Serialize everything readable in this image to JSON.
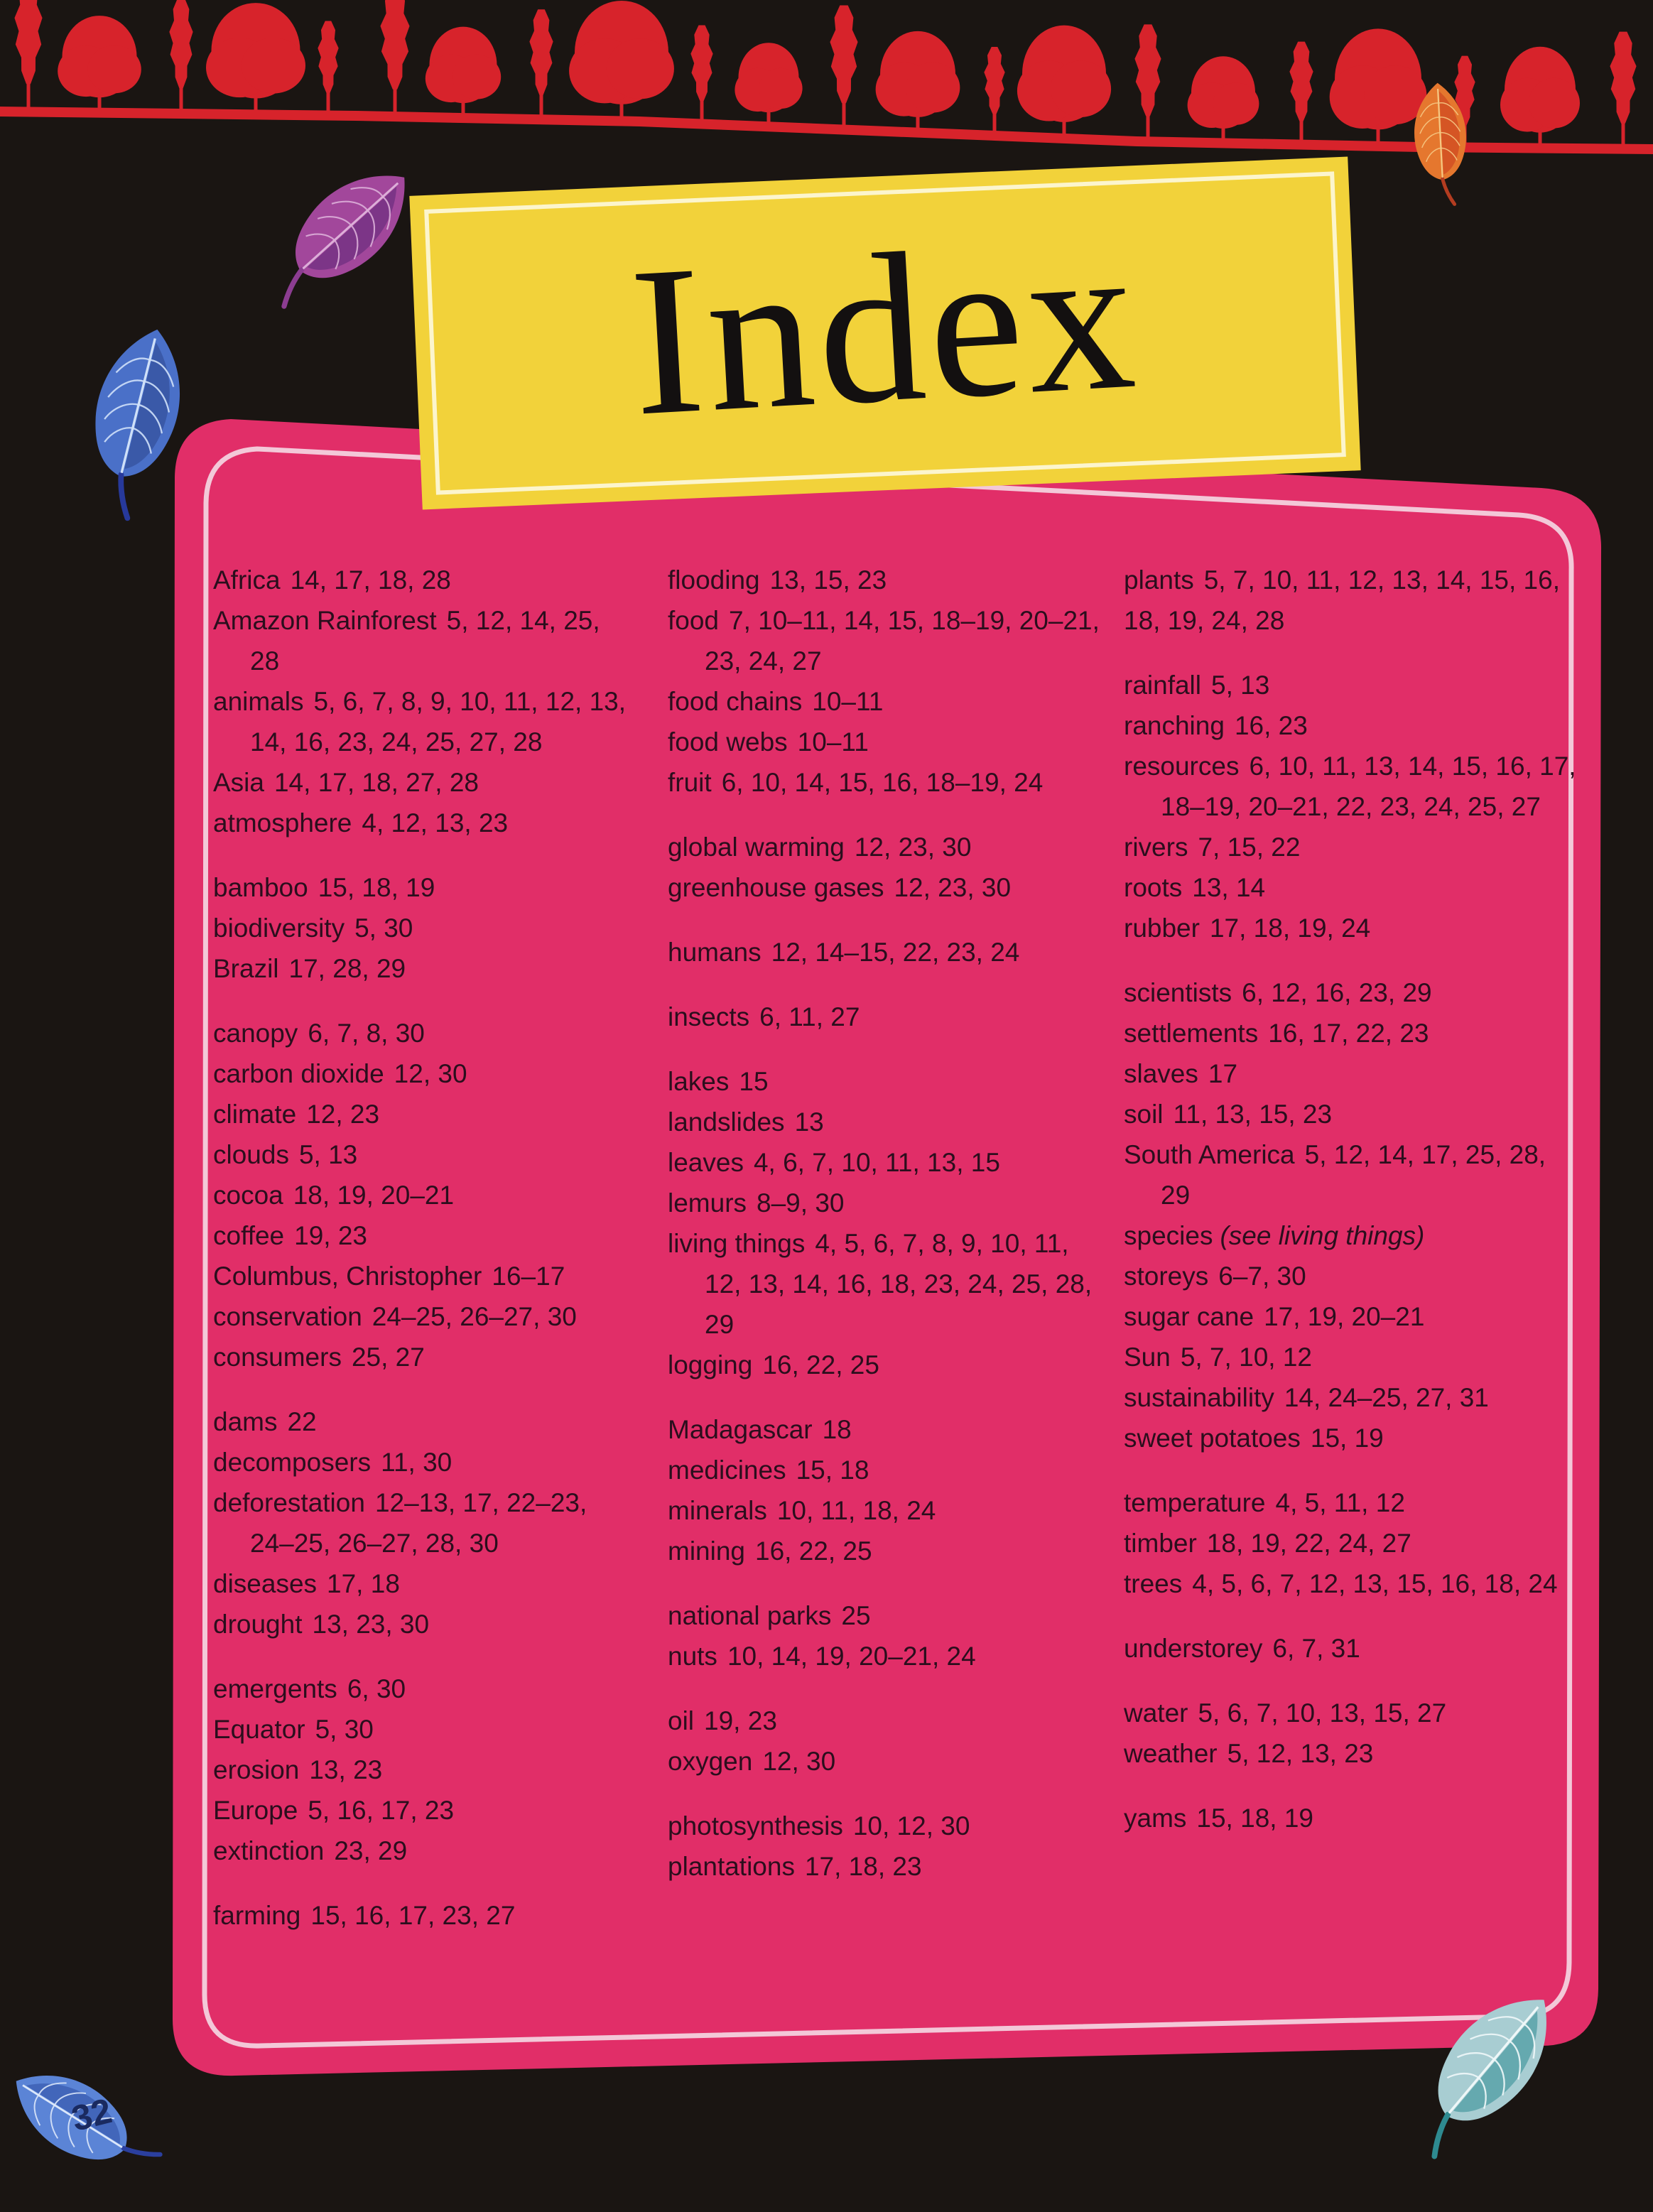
{
  "page": {
    "title": "Index",
    "page_number": "32"
  },
  "palette": {
    "background_black": "#1a1512",
    "panel_pink": "#e12e68",
    "panel_inner_line": "#f6e3ec",
    "banner_yellow": "#f2d23a",
    "tree_red": "#d7232b",
    "entry_text": "#2b0e1d",
    "title_text": "#131010",
    "page_number_text": "#1a2a60"
  },
  "decor": {
    "leaves": [
      {
        "icon": "purple-leaf-icon",
        "fill": "#a2479b",
        "inner": "#6f2f80",
        "vein": "#dcaed8",
        "stem": "#8c3d91"
      },
      {
        "icon": "blue-leaf-top-left-icon",
        "fill": "#4a70c8",
        "inner": "#35519e",
        "vein": "#cfe0f8",
        "stem": "#27399b"
      },
      {
        "icon": "orange-leaf-top-right-icon",
        "fill": "#e5772e",
        "inner": "#cf4a22",
        "vein": "#f5c884",
        "stem": "#b33c20"
      },
      {
        "icon": "blue-leaf-page-number-icon",
        "fill": "#5b84d6",
        "inner": "#3a5cb0",
        "vein": "#dbe7fa",
        "stem": "#2b3f9e"
      },
      {
        "icon": "teal-leaf-bottom-right-icon",
        "fill": "#a8cdd2",
        "inner": "#4f9ca3",
        "vein": "#eef7f8",
        "stem": "#2e8a90"
      }
    ],
    "tree_band_icon": "red-tree-silhouettes-icon"
  },
  "index": {
    "columns": [
      {
        "groups": [
          {
            "entries": [
              {
                "term": "Africa",
                "pages": "14, 17, 18, 28"
              },
              {
                "term": "Amazon Rainforest",
                "pages": "5, 12, 14, 25, 28"
              },
              {
                "term": "animals",
                "pages": "5, 6, 7, 8, 9, 10, 11, 12, 13, 14, 16, 23, 24, 25, 27, 28"
              },
              {
                "term": "Asia",
                "pages": "14, 17, 18, 27, 28"
              },
              {
                "term": "atmosphere",
                "pages": "4, 12, 13, 23"
              }
            ]
          },
          {
            "entries": [
              {
                "term": "bamboo",
                "pages": "15, 18, 19"
              },
              {
                "term": "biodiversity",
                "pages": "5, 30"
              },
              {
                "term": "Brazil",
                "pages": "17, 28, 29"
              }
            ]
          },
          {
            "entries": [
              {
                "term": "canopy",
                "pages": "6, 7, 8, 30"
              },
              {
                "term": "carbon dioxide",
                "pages": "12, 30"
              },
              {
                "term": "climate",
                "pages": "12, 23"
              },
              {
                "term": "clouds",
                "pages": "5, 13"
              },
              {
                "term": "cocoa",
                "pages": "18, 19, 20–21"
              },
              {
                "term": "coffee",
                "pages": "19, 23"
              },
              {
                "term": "Columbus, Christopher",
                "pages": "16–17"
              },
              {
                "term": "conservation",
                "pages": "24–25, 26–27, 30"
              },
              {
                "term": "consumers",
                "pages": "25, 27"
              }
            ]
          },
          {
            "entries": [
              {
                "term": "dams",
                "pages": "22"
              },
              {
                "term": "decomposers",
                "pages": "11, 30"
              },
              {
                "term": "deforestation",
                "pages": "12–13, 17, 22–23, 24–25, 26–27, 28, 30"
              },
              {
                "term": "diseases",
                "pages": "17, 18"
              },
              {
                "term": "drought",
                "pages": "13, 23, 30"
              }
            ]
          },
          {
            "entries": [
              {
                "term": "emergents",
                "pages": "6, 30"
              },
              {
                "term": "Equator",
                "pages": "5, 30"
              },
              {
                "term": "erosion",
                "pages": "13, 23"
              },
              {
                "term": "Europe",
                "pages": "5, 16, 17, 23"
              },
              {
                "term": "extinction",
                "pages": "23, 29"
              }
            ]
          },
          {
            "entries": [
              {
                "term": "farming",
                "pages": "15, 16, 17, 23, 27"
              }
            ]
          }
        ]
      },
      {
        "groups": [
          {
            "entries": [
              {
                "term": "flooding",
                "pages": "13, 15, 23"
              },
              {
                "term": "food",
                "pages": "7, 10–11, 14, 15, 18–19, 20–21, 23, 24, 27"
              },
              {
                "term": "food chains",
                "pages": "10–11"
              },
              {
                "term": "food webs",
                "pages": "10–11"
              },
              {
                "term": "fruit",
                "pages": "6, 10, 14, 15, 16, 18–19, 24"
              }
            ]
          },
          {
            "entries": [
              {
                "term": "global warming",
                "pages": "12, 23, 30"
              },
              {
                "term": "greenhouse gases",
                "pages": "12, 23, 30"
              }
            ]
          },
          {
            "entries": [
              {
                "term": "humans",
                "pages": "12, 14–15, 22, 23, 24"
              }
            ]
          },
          {
            "entries": [
              {
                "term": "insects",
                "pages": "6, 11, 27"
              }
            ]
          },
          {
            "entries": [
              {
                "term": "lakes",
                "pages": "15"
              },
              {
                "term": "landslides",
                "pages": "13"
              },
              {
                "term": "leaves",
                "pages": "4, 6, 7, 10, 11, 13, 15"
              },
              {
                "term": "lemurs",
                "pages": "8–9, 30"
              },
              {
                "term": "living things",
                "pages": "4, 5, 6, 7, 8, 9, 10, 11, 12, 13, 14, 16, 18, 23, 24, 25, 28, 29"
              },
              {
                "term": "logging",
                "pages": "16, 22, 25"
              }
            ]
          },
          {
            "entries": [
              {
                "term": "Madagascar",
                "pages": "18"
              },
              {
                "term": "medicines",
                "pages": "15, 18"
              },
              {
                "term": "minerals",
                "pages": "10, 11, 18, 24"
              },
              {
                "term": "mining",
                "pages": "16, 22, 25"
              }
            ]
          },
          {
            "entries": [
              {
                "term": "national parks",
                "pages": "25"
              },
              {
                "term": "nuts",
                "pages": "10, 14, 19, 20–21, 24"
              }
            ]
          },
          {
            "entries": [
              {
                "term": "oil",
                "pages": "19, 23"
              },
              {
                "term": "oxygen",
                "pages": "12, 30"
              }
            ]
          },
          {
            "entries": [
              {
                "term": "photosynthesis",
                "pages": "10, 12, 30"
              },
              {
                "term": "plantations",
                "pages": "17, 18, 23"
              }
            ]
          }
        ]
      },
      {
        "groups": [
          {
            "entries": [
              {
                "term": "plants",
                "pages": "5, 7, 10, 11, 12, 13, 14, 15, 16, 18, 19, 24, 28",
                "flush": true
              }
            ]
          },
          {
            "entries": [
              {
                "term": "rainfall",
                "pages": "5, 13"
              },
              {
                "term": "ranching",
                "pages": "16, 23"
              },
              {
                "term": "resources",
                "pages": "6, 10, 11, 13, 14, 15, 16, 17, 18–19, 20–21, 22, 23, 24, 25, 27"
              },
              {
                "term": "rivers",
                "pages": "7, 15, 22"
              },
              {
                "term": "roots",
                "pages": "13, 14"
              },
              {
                "term": "rubber",
                "pages": "17, 18, 19, 24"
              }
            ]
          },
          {
            "entries": [
              {
                "term": "scientists",
                "pages": "6, 12, 16, 23, 29"
              },
              {
                "term": "settlements",
                "pages": "16, 17, 22, 23"
              },
              {
                "term": "slaves",
                "pages": "17"
              },
              {
                "term": "soil",
                "pages": "11, 13, 15, 23"
              },
              {
                "term": "South America",
                "pages": "5, 12, 14, 17, 25, 28, 29"
              },
              {
                "term": "species",
                "pages": "",
                "note": "(see living things)"
              },
              {
                "term": "storeys",
                "pages": "6–7, 30"
              },
              {
                "term": "sugar cane",
                "pages": "17, 19, 20–21"
              },
              {
                "term": "Sun",
                "pages": "5, 7, 10, 12"
              },
              {
                "term": "sustainability",
                "pages": "14, 24–25, 27, 31"
              },
              {
                "term": "sweet potatoes",
                "pages": "15, 19"
              }
            ]
          },
          {
            "entries": [
              {
                "term": "temperature",
                "pages": "4, 5, 11, 12"
              },
              {
                "term": "timber",
                "pages": "18, 19, 22, 24, 27"
              },
              {
                "term": "trees",
                "pages": "4, 5, 6, 7, 12, 13, 15, 16, 18, 24"
              }
            ]
          },
          {
            "entries": [
              {
                "term": "understorey",
                "pages": "6, 7, 31"
              }
            ]
          },
          {
            "entries": [
              {
                "term": "water",
                "pages": "5, 6, 7, 10, 13, 15, 27"
              },
              {
                "term": "weather",
                "pages": "5, 12, 13, 23"
              }
            ]
          },
          {
            "entries": [
              {
                "term": "yams",
                "pages": "15, 18, 19"
              }
            ]
          }
        ]
      }
    ]
  }
}
